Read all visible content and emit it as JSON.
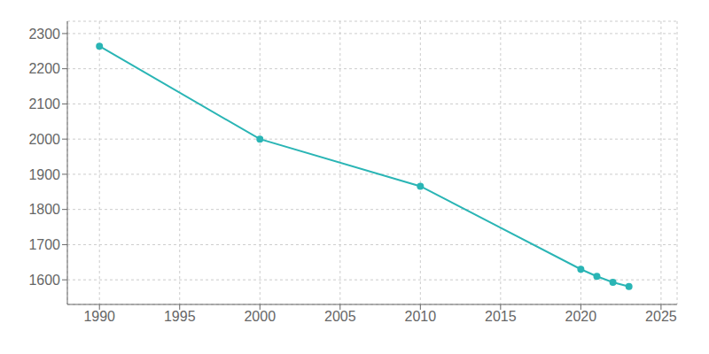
{
  "chart_data": {
    "type": "line",
    "x": [
      1990,
      2000,
      2010,
      2020,
      2021,
      2022,
      2023
    ],
    "values": [
      2264,
      2000,
      1866,
      1630,
      1610,
      1593,
      1581
    ],
    "color": "#2ab5b5",
    "marker": "circle",
    "xlim": [
      1988,
      2026
    ],
    "ylim": [
      1530,
      2335
    ],
    "xticks": [
      1990,
      1995,
      2000,
      2005,
      2010,
      2015,
      2020,
      2025
    ],
    "yticks": [
      1600,
      1700,
      1800,
      1900,
      2000,
      2100,
      2200,
      2300
    ],
    "grid": true
  }
}
